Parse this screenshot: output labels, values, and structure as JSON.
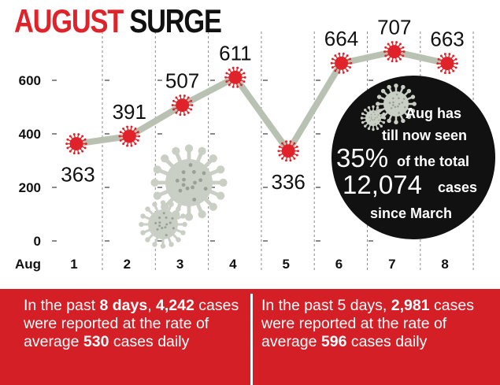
{
  "title": {
    "word1": "AUGUST",
    "word2": "SURGE"
  },
  "colors": {
    "accent": "#d51f26",
    "line": "#b9c2b2",
    "dot": "#e0232a",
    "text": "#111111"
  },
  "chart_data": {
    "type": "line",
    "x_axis_label": "Aug",
    "categories": [
      "1",
      "2",
      "3",
      "4",
      "5",
      "6",
      "7",
      "8"
    ],
    "series": [
      {
        "values": [
          363,
          391,
          507,
          611,
          336,
          664,
          707,
          663
        ]
      }
    ],
    "data_labels": [
      "363",
      "391",
      "507",
      "611",
      "336",
      "664",
      "707",
      "663"
    ],
    "yticks": [
      "0",
      "200",
      "400",
      "600"
    ],
    "ylim": [
      0,
      780
    ],
    "grid": "vertical dashed lines at each day, short dashed ticks at y values"
  },
  "callout": {
    "line1": "Aug has",
    "line2": "till now seen",
    "percent": "35%",
    "percent_suffix": "of the total",
    "total": "12,074",
    "total_suffix": "cases",
    "line5": "since March"
  },
  "info": {
    "left": {
      "p1": "In the past ",
      "b1": "8 days",
      "p2": ", ",
      "b2": "4,242",
      "p3": " cases were reported at the rate of average ",
      "b3": "530",
      "p4": " cases daily"
    },
    "right": {
      "p1": "In the past 5 days, ",
      "b1": "2,981",
      "p2": " cases were reported at the rate of average ",
      "b2": "596",
      "p3": " cases daily"
    }
  }
}
